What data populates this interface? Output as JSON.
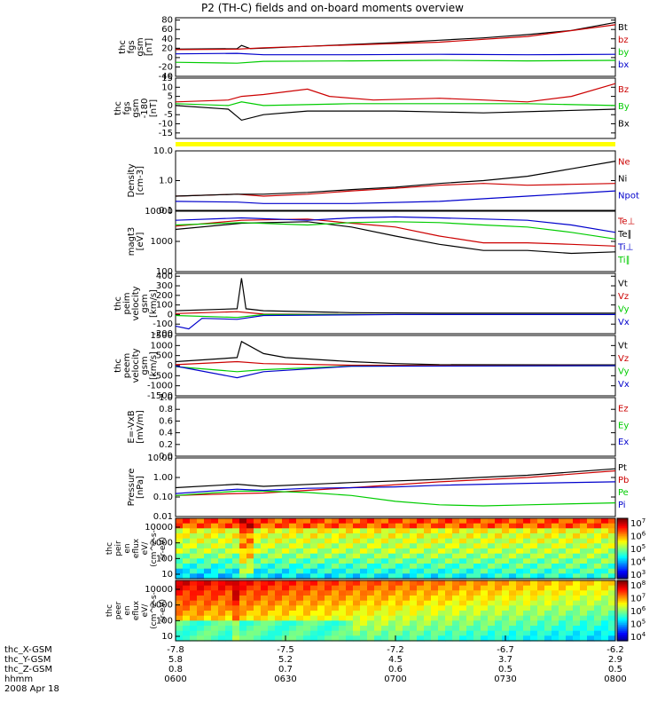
{
  "title": "P2 (TH-C) fields and on-board moments overview",
  "chart_data": {
    "type": "line",
    "panels": [
      {
        "id": "fgs-gsm",
        "ylabel": [
          "thc",
          "fgs",
          "gsm",
          "[nT]"
        ],
        "yticks": [
          "80",
          "60",
          "40",
          "20",
          "0",
          "-20",
          "-40"
        ],
        "ylim": [
          -40,
          85
        ],
        "legend": [
          {
            "name": "Bt",
            "color": "#000000"
          },
          {
            "name": "bz",
            "color": "#cc0000"
          },
          {
            "name": "by",
            "color": "#00cc00"
          },
          {
            "name": "bx",
            "color": "#0000cc"
          }
        ],
        "series": [
          {
            "name": "Bt",
            "color": "#000000",
            "x": [
              0,
              0.14,
              0.15,
              0.17,
              0.2,
              0.3,
              0.4,
              0.5,
              0.6,
              0.7,
              0.8,
              0.9,
              1.0
            ],
            "y": [
              18,
              19,
              26,
              19,
              20,
              24,
              28,
              32,
              37,
              42,
              49,
              58,
              75
            ]
          },
          {
            "name": "bz",
            "color": "#cc0000",
            "x": [
              0,
              0.14,
              0.2,
              0.4,
              0.6,
              0.8,
              1.0
            ],
            "y": [
              17,
              18,
              21,
              27,
              33,
              45,
              70
            ]
          },
          {
            "name": "by",
            "color": "#00cc00",
            "x": [
              0,
              0.14,
              0.2,
              0.4,
              0.6,
              0.8,
              1.0
            ],
            "y": [
              -10,
              -12,
              -8,
              -7,
              -6,
              -7,
              -6
            ]
          },
          {
            "name": "bx",
            "color": "#0000cc",
            "x": [
              0,
              0.14,
              0.2,
              0.4,
              0.6,
              0.8,
              1.0
            ],
            "y": [
              8,
              9,
              6,
              6,
              7,
              6,
              7
            ]
          }
        ]
      },
      {
        "id": "fgs-gsm-zoom",
        "ylabel": [
          "thc",
          "fgs",
          "gsm",
          "-180",
          "[nT]"
        ],
        "yticks": [
          "15",
          "10",
          "5",
          "0",
          "-5",
          "-10",
          "-15"
        ],
        "ylim": [
          -18,
          15
        ],
        "legend": [
          {
            "name": "Bz",
            "color": "#cc0000"
          },
          {
            "name": "By",
            "color": "#00cc00"
          },
          {
            "name": "Bx",
            "color": "#000000"
          }
        ],
        "series": [
          {
            "name": "Bz",
            "color": "#cc0000",
            "x": [
              0,
              0.12,
              0.15,
              0.2,
              0.3,
              0.35,
              0.45,
              0.6,
              0.7,
              0.8,
              0.9,
              1.0
            ],
            "y": [
              2,
              3,
              5,
              6,
              9,
              5,
              3,
              4,
              3,
              2,
              5,
              12
            ]
          },
          {
            "name": "By",
            "color": "#00cc00",
            "x": [
              0,
              0.12,
              0.15,
              0.2,
              0.4,
              0.6,
              0.8,
              1.0
            ],
            "y": [
              1,
              0,
              2,
              0,
              1,
              1,
              1,
              0
            ]
          },
          {
            "name": "Bx",
            "color": "#000000",
            "x": [
              0,
              0.12,
              0.15,
              0.2,
              0.3,
              0.5,
              0.7,
              0.85,
              1.0
            ],
            "y": [
              0,
              -2,
              -8,
              -5,
              -3,
              -3,
              -4,
              -3,
              -2
            ]
          }
        ]
      },
      {
        "id": "density",
        "ylabel": [
          "Density",
          "[cm-3]"
        ],
        "yticks": [
          "10.0",
          "1.0",
          "0.1"
        ],
        "ylim": [
          0.1,
          10
        ],
        "yscale": "log",
        "legend": [
          {
            "name": "Ne",
            "color": "#cc0000"
          },
          {
            "name": "Ni",
            "color": "#000000"
          },
          {
            "name": "Npot",
            "color": "#0000cc"
          }
        ],
        "series": [
          {
            "name": "Ne",
            "color": "#cc0000",
            "x": [
              0,
              0.14,
              0.2,
              0.3,
              0.4,
              0.5,
              0.6,
              0.7,
              0.8,
              0.9,
              1.0
            ],
            "y": [
              0.3,
              0.35,
              0.3,
              0.35,
              0.45,
              0.55,
              0.7,
              0.8,
              0.7,
              0.75,
              0.8
            ]
          },
          {
            "name": "Ni",
            "color": "#000000",
            "x": [
              0,
              0.14,
              0.2,
              0.3,
              0.4,
              0.5,
              0.6,
              0.7,
              0.8,
              0.9,
              1.0
            ],
            "y": [
              0.3,
              0.35,
              0.35,
              0.4,
              0.5,
              0.6,
              0.8,
              1.0,
              1.4,
              2.5,
              4.5
            ]
          },
          {
            "name": "Npot",
            "color": "#0000cc",
            "x": [
              0,
              0.14,
              0.2,
              0.4,
              0.6,
              0.8,
              1.0
            ],
            "y": [
              0.2,
              0.19,
              0.17,
              0.17,
              0.2,
              0.3,
              0.45
            ]
          }
        ]
      },
      {
        "id": "temperature",
        "ylabel": [
          "magt3",
          "[eV]"
        ],
        "yticks": [
          "10000",
          "1000",
          "100"
        ],
        "ylim": [
          100,
          10000
        ],
        "yscale": "log",
        "legend": [
          {
            "name": "Te⊥",
            "color": "#cc0000"
          },
          {
            "name": "Te∥",
            "color": "#000000"
          },
          {
            "name": "Ti⊥",
            "color": "#0000cc"
          },
          {
            "name": "Ti∥",
            "color": "#00cc00"
          }
        ],
        "series": [
          {
            "name": "Te⊥",
            "color": "#cc0000",
            "x": [
              0,
              0.15,
              0.3,
              0.4,
              0.5,
              0.6,
              0.7,
              0.8,
              0.9,
              1.0
            ],
            "y": [
              3200,
              5000,
              5500,
              4000,
              3000,
              1500,
              900,
              900,
              800,
              700
            ]
          },
          {
            "name": "Te∥",
            "color": "#000000",
            "x": [
              0,
              0.15,
              0.3,
              0.4,
              0.5,
              0.6,
              0.7,
              0.8,
              0.9,
              1.0
            ],
            "y": [
              2500,
              4000,
              4500,
              3000,
              1500,
              800,
              500,
              500,
              400,
              450
            ]
          },
          {
            "name": "Ti⊥",
            "color": "#0000cc",
            "x": [
              0,
              0.15,
              0.3,
              0.4,
              0.5,
              0.6,
              0.7,
              0.8,
              0.9,
              1.0
            ],
            "y": [
              5000,
              6000,
              5000,
              6000,
              6500,
              6000,
              5500,
              5000,
              3500,
              2000
            ]
          },
          {
            "name": "Ti∥",
            "color": "#00cc00",
            "x": [
              0,
              0.15,
              0.3,
              0.4,
              0.5,
              0.6,
              0.7,
              0.8,
              0.9,
              1.0
            ],
            "y": [
              3500,
              4200,
              3500,
              4200,
              4500,
              4200,
              3500,
              3000,
              2000,
              1200
            ]
          }
        ]
      },
      {
        "id": "peim-velocity",
        "ylabel": [
          "thc",
          "peim",
          "velocity",
          "gsm",
          "[km/s]"
        ],
        "yticks": [
          "400",
          "300",
          "200",
          "100",
          "0",
          "-100",
          "-200"
        ],
        "ylim": [
          -200,
          430
        ],
        "legend": [
          {
            "name": "Vt",
            "color": "#000000"
          },
          {
            "name": "Vz",
            "color": "#cc0000"
          },
          {
            "name": "Vy",
            "color": "#00cc00"
          },
          {
            "name": "Vx",
            "color": "#0000cc"
          }
        ],
        "series": [
          {
            "name": "Vt",
            "color": "#000000",
            "x": [
              0,
              0.14,
              0.15,
              0.16,
              0.2,
              0.4,
              0.6,
              0.8,
              1.0
            ],
            "y": [
              40,
              60,
              380,
              60,
              40,
              20,
              15,
              15,
              15
            ]
          },
          {
            "name": "Vz",
            "color": "#cc0000",
            "x": [
              0,
              0.14,
              0.2,
              0.5,
              1.0
            ],
            "y": [
              10,
              30,
              5,
              0,
              0
            ]
          },
          {
            "name": "Vy",
            "color": "#00cc00",
            "x": [
              0,
              0.14,
              0.2,
              0.5,
              1.0
            ],
            "y": [
              -10,
              -30,
              0,
              0,
              0
            ]
          },
          {
            "name": "Vx",
            "color": "#0000cc",
            "x": [
              0,
              0.03,
              0.06,
              0.14,
              0.2,
              0.5,
              1.0
            ],
            "y": [
              -120,
              -150,
              -40,
              -50,
              -10,
              0,
              0
            ]
          }
        ]
      },
      {
        "id": "peem-velocity",
        "ylabel": [
          "thc",
          "peem",
          "velocity",
          "gsm",
          "[km/s]"
        ],
        "yticks": [
          "1500",
          "1000",
          "500",
          "0",
          "-500",
          "-1000",
          "-1500"
        ],
        "ylim": [
          -1500,
          1500
        ],
        "legend": [
          {
            "name": "Vt",
            "color": "#000000"
          },
          {
            "name": "Vz",
            "color": "#cc0000"
          },
          {
            "name": "Vy",
            "color": "#00cc00"
          },
          {
            "name": "Vx",
            "color": "#0000cc"
          }
        ],
        "series": [
          {
            "name": "Vt",
            "color": "#000000",
            "x": [
              0,
              0.14,
              0.15,
              0.2,
              0.25,
              0.4,
              0.5,
              0.6,
              1.0
            ],
            "y": [
              200,
              400,
              1200,
              600,
              400,
              200,
              100,
              50,
              40
            ]
          },
          {
            "name": "Vz",
            "color": "#cc0000",
            "x": [
              0,
              0.14,
              0.2,
              0.4,
              1.0
            ],
            "y": [
              50,
              200,
              100,
              20,
              0
            ]
          },
          {
            "name": "Vy",
            "color": "#00cc00",
            "x": [
              0,
              0.14,
              0.2,
              0.4,
              1.0
            ],
            "y": [
              -50,
              -300,
              -200,
              -20,
              0
            ]
          },
          {
            "name": "Vx",
            "color": "#0000cc",
            "x": [
              0,
              0.14,
              0.2,
              0.4,
              1.0
            ],
            "y": [
              -20,
              -600,
              -300,
              -30,
              0
            ]
          }
        ]
      },
      {
        "id": "e-vxb",
        "ylabel": [
          "E=-VxB",
          "[mV/m]"
        ],
        "yticks": [
          "1.0",
          "0.8",
          "0.6",
          "0.4",
          "0.2",
          "0.0"
        ],
        "ylim": [
          0,
          1
        ],
        "legend": [
          {
            "name": "Ez",
            "color": "#cc0000"
          },
          {
            "name": "Ey",
            "color": "#00cc00"
          },
          {
            "name": "Ex",
            "color": "#0000cc"
          }
        ],
        "series": []
      },
      {
        "id": "pressure",
        "ylabel": [
          "Pressure",
          "[nPa]"
        ],
        "yticks": [
          "10.00",
          "1.00",
          "0.10",
          "0.01"
        ],
        "ylim": [
          0.01,
          10
        ],
        "yscale": "log",
        "legend": [
          {
            "name": "Pt",
            "color": "#000000"
          },
          {
            "name": "Pb",
            "color": "#cc0000"
          },
          {
            "name": "Pe",
            "color": "#00cc00"
          },
          {
            "name": "Pi",
            "color": "#0000cc"
          }
        ],
        "series": [
          {
            "name": "Pt",
            "color": "#000000",
            "x": [
              0,
              0.14,
              0.2,
              0.4,
              0.6,
              0.8,
              1.0
            ],
            "y": [
              0.3,
              0.45,
              0.35,
              0.55,
              0.8,
              1.3,
              2.8
            ]
          },
          {
            "name": "Pb",
            "color": "#cc0000",
            "x": [
              0,
              0.14,
              0.2,
              0.4,
              0.6,
              0.8,
              1.0
            ],
            "y": [
              0.12,
              0.15,
              0.16,
              0.3,
              0.6,
              1.0,
              2.2
            ]
          },
          {
            "name": "Pe",
            "color": "#00cc00",
            "x": [
              0,
              0.14,
              0.2,
              0.3,
              0.4,
              0.5,
              0.6,
              0.7,
              0.8,
              1.0
            ],
            "y": [
              0.12,
              0.2,
              0.2,
              0.17,
              0.12,
              0.06,
              0.04,
              0.035,
              0.04,
              0.05
            ]
          },
          {
            "name": "Pi",
            "color": "#0000cc",
            "x": [
              0,
              0.14,
              0.2,
              0.3,
              0.4,
              0.5,
              0.6,
              0.8,
              1.0
            ],
            "y": [
              0.15,
              0.25,
              0.22,
              0.28,
              0.3,
              0.33,
              0.4,
              0.5,
              0.6
            ]
          }
        ]
      }
    ],
    "spectrograms": [
      {
        "id": "peir-eflux",
        "ylabel": [
          "thc",
          "peir",
          "en",
          "eflux",
          "eV/",
          "(cm^2-s-",
          "sr-eV)"
        ],
        "yticks": [
          "10000",
          "1000",
          "100",
          "10"
        ],
        "colorbar_ticks": [
          "10^7",
          "10^6",
          "10^5",
          "10^4",
          "10^3"
        ]
      },
      {
        "id": "peer-eflux",
        "ylabel": [
          "thc",
          "peer",
          "en",
          "eflux",
          "eV/",
          "(cm^2-s-",
          "sr-eV)"
        ],
        "yticks": [
          "10000",
          "1000",
          "100",
          "10"
        ],
        "colorbar_ticks": [
          "10^8",
          "10^7",
          "10^6",
          "10^5",
          "10^4"
        ]
      }
    ],
    "x_axis": {
      "rows": [
        {
          "label": "thc_X-GSM",
          "values": [
            "-7.8",
            "-7.5",
            "-7.2",
            "-6.7",
            "-6.2"
          ]
        },
        {
          "label": "thc_Y-GSM",
          "values": [
            "5.8",
            "5.2",
            "4.5",
            "3.7",
            "2.9"
          ]
        },
        {
          "label": "thc_Z-GSM",
          "values": [
            "0.8",
            "0.7",
            "0.6",
            "0.5",
            "0.5"
          ]
        },
        {
          "label": "hhmm",
          "values": [
            "0600",
            "0630",
            "0700",
            "0730",
            "0800"
          ]
        }
      ],
      "date": "2008 Apr 18"
    }
  }
}
